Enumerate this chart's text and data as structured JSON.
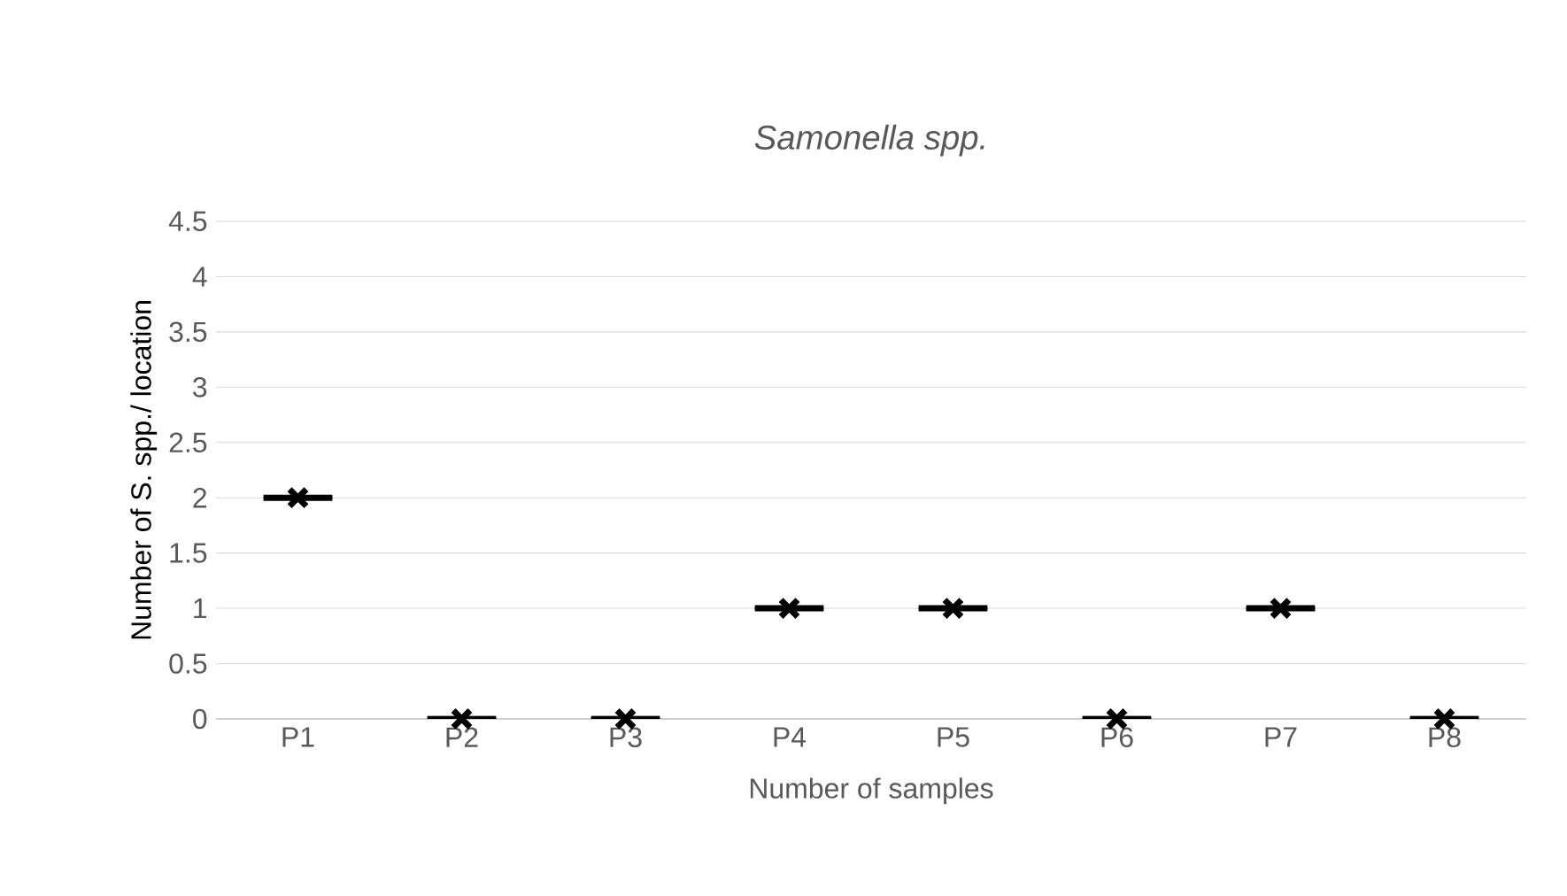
{
  "chart_data": {
    "type": "box",
    "title": "Samonella spp.",
    "xlabel": "Number of samples",
    "ylabel": "Number of S. spp./ location",
    "categories": [
      "P1",
      "P2",
      "P3",
      "P4",
      "P5",
      "P6",
      "P7",
      "P8"
    ],
    "boxes": [
      {
        "low": 2,
        "q1": 2,
        "median": 2,
        "q3": 2,
        "high": 2,
        "mean": 2
      },
      {
        "low": 0,
        "q1": 0,
        "median": 0,
        "q3": 0,
        "high": 0,
        "mean": 0
      },
      {
        "low": 0,
        "q1": 0,
        "median": 0,
        "q3": 0,
        "high": 0,
        "mean": 0
      },
      {
        "low": 1,
        "q1": 1,
        "median": 1,
        "q3": 1,
        "high": 1,
        "mean": 1
      },
      {
        "low": 1,
        "q1": 1,
        "median": 1,
        "q3": 1,
        "high": 1,
        "mean": 1
      },
      {
        "low": 0,
        "q1": 0,
        "median": 0,
        "q3": 0,
        "high": 0,
        "mean": 0
      },
      {
        "low": 1,
        "q1": 1,
        "median": 1,
        "q3": 1,
        "high": 1,
        "mean": 1
      },
      {
        "low": 0,
        "q1": 0,
        "median": 0,
        "q3": 0,
        "high": 0,
        "mean": 0
      }
    ],
    "color": "#000000",
    "ylim": [
      0,
      4.5
    ],
    "yticks": [
      0,
      0.5,
      1,
      1.5,
      2,
      2.5,
      3,
      3.5,
      4,
      4.5
    ],
    "grid": "y"
  }
}
